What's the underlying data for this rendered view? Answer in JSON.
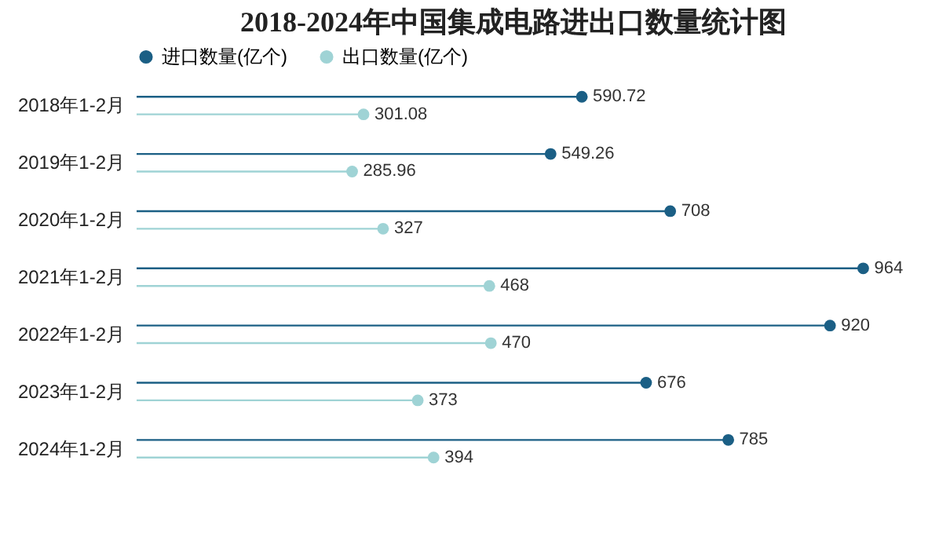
{
  "chart_data": {
    "type": "lollipop",
    "orientation": "horizontal",
    "title": "2018-2024年中国集成电路进出口数量统计图",
    "categories": [
      "2018年1-2月",
      "2019年1-2月",
      "2020年1-2月",
      "2021年1-2月",
      "2022年1-2月",
      "2023年1-2月",
      "2024年1-2月"
    ],
    "series": [
      {
        "name": "进口数量(亿个)",
        "color": "#1b5f85",
        "values": [
          590.72,
          549.26,
          708,
          964,
          920,
          676,
          785
        ]
      },
      {
        "name": "出口数量(亿个)",
        "color": "#9fd3d5",
        "values": [
          301.08,
          285.96,
          327,
          468,
          470,
          373,
          394
        ]
      }
    ],
    "data_labels": true,
    "legend": "top",
    "grid": false
  }
}
